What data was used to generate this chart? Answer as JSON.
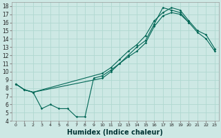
{
  "xlabel": "Humidex (Indice chaleur)",
  "bg_color": "#cde8e4",
  "grid_color": "#b0d8d0",
  "line_color": "#006655",
  "xlim": [
    -0.5,
    23.5
  ],
  "ylim": [
    4,
    18.5
  ],
  "xticks": [
    0,
    1,
    2,
    3,
    4,
    5,
    6,
    7,
    8,
    9,
    10,
    11,
    12,
    13,
    14,
    15,
    16,
    17,
    18,
    19,
    20,
    21,
    22,
    23
  ],
  "yticks": [
    4,
    5,
    6,
    7,
    8,
    9,
    10,
    11,
    12,
    13,
    14,
    15,
    16,
    17,
    18
  ],
  "line1_x": [
    0,
    1,
    2,
    10,
    11,
    12,
    13,
    14,
    15,
    16,
    17,
    18,
    19,
    20,
    21,
    22,
    23
  ],
  "line1_y": [
    8.5,
    7.8,
    7.5,
    9.8,
    10.5,
    11.5,
    12.5,
    13.3,
    14.4,
    16.2,
    17.2,
    17.8,
    17.5,
    16.2,
    15.0,
    14.5,
    12.8
  ],
  "line2_x": [
    0,
    1,
    2,
    10,
    11,
    12,
    13,
    14,
    15,
    16,
    17,
    18,
    19,
    20,
    21,
    22,
    23
  ],
  "line2_y": [
    8.5,
    7.8,
    7.5,
    9.2,
    10.0,
    11.0,
    11.8,
    12.5,
    13.5,
    15.5,
    16.8,
    17.2,
    17.0,
    16.0,
    14.8,
    14.0,
    12.5
  ],
  "line3_x": [
    0,
    1,
    2,
    3,
    4,
    5,
    6,
    7,
    8,
    9,
    10,
    11,
    12,
    13,
    14,
    15,
    16,
    17,
    18,
    19,
    20,
    21,
    22,
    23
  ],
  "line3_y": [
    8.5,
    7.8,
    7.5,
    5.5,
    6.0,
    5.5,
    5.5,
    4.5,
    4.5,
    9.2,
    9.5,
    10.2,
    11.0,
    12.0,
    13.0,
    13.8,
    15.8,
    17.8,
    17.5,
    17.2,
    16.0,
    null,
    null,
    12.8
  ],
  "xlabel_fontsize": 7,
  "tick_fontsize": 5.5
}
